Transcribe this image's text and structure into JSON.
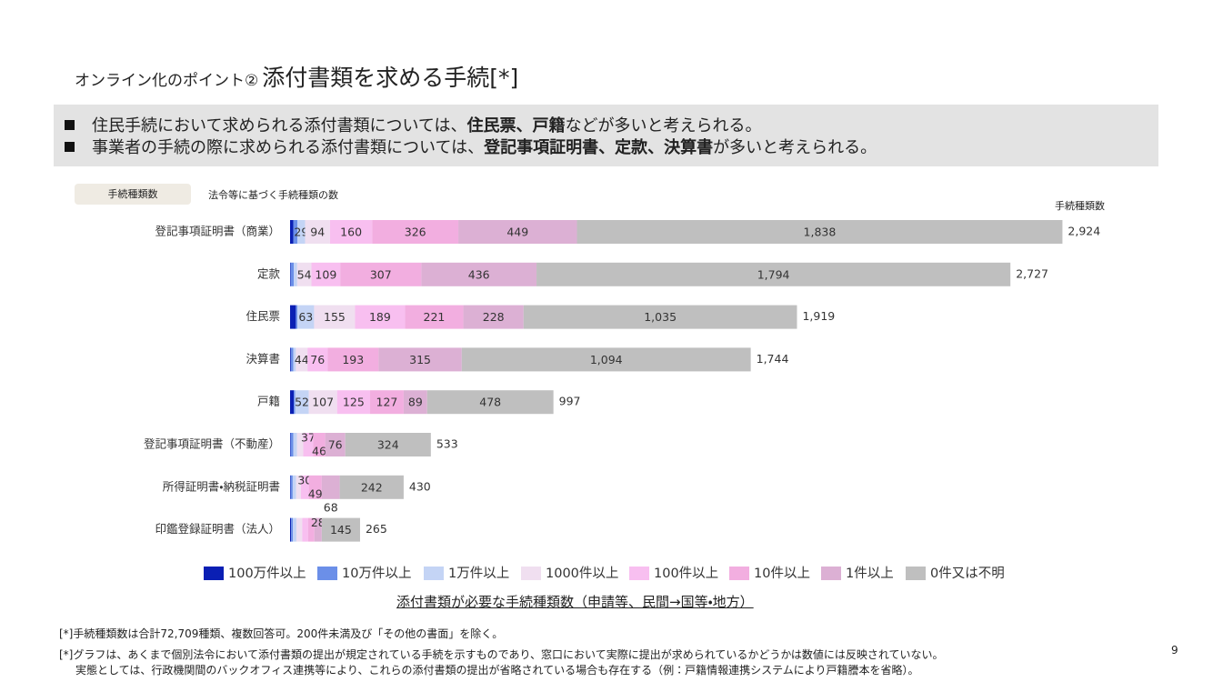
{
  "title": {
    "prefix": "オンライン化のポイント②",
    "main": "添付書類を求める手続[*]"
  },
  "bullets": [
    [
      "住民手続において求められる添付書類については、",
      "住民票、戸籍",
      "などが多いと考えられる。"
    ],
    [
      "事業者の手続の際に求められる添付書類については、",
      "登記事項証明書、定款、決算書",
      "が多いと考えられる。"
    ]
  ],
  "chart_data": {
    "type": "stacked-barh",
    "tag": "手続種類数",
    "tag_note": "法令等に基づく手続種類の数",
    "total_header": "手続種類数",
    "x_label": "添付書類が必要な手続種類数（申請等、民間→国等・地方）",
    "categories": [
      "登記事項証明書（商業）",
      "定款",
      "住民票",
      "決算書",
      "戸籍",
      "登記事項証明書（不動産）",
      "所得証明書・納税証明書",
      "印鑑登録証明書（法人）"
    ],
    "series": [
      {
        "name": "100万件以上",
        "color": "#0a1fb4",
        "values": [
          12,
          2,
          22,
          3,
          14,
          2,
          2,
          4
        ],
        "value_labels": [
          null,
          null,
          null,
          null,
          null,
          null,
          null,
          null
        ]
      },
      {
        "name": "10万件以上",
        "color": "#6b8fe8",
        "values": [
          16,
          12,
          6,
          9,
          5,
          10,
          8,
          7
        ],
        "value_labels": [
          null,
          null,
          null,
          null,
          null,
          null,
          null,
          null
        ]
      },
      {
        "name": "1万件以上",
        "color": "#c4d4f5",
        "values": [
          29,
          13,
          63,
          10,
          52,
          14,
          13,
          13
        ],
        "value_labels": [
          "29",
          null,
          "63",
          null,
          "52",
          null,
          null,
          null
        ]
      },
      {
        "name": "1000件以上",
        "color": "#f0dff0",
        "values": [
          94,
          54,
          155,
          44,
          107,
          24,
          18,
          22
        ],
        "value_labels": [
          "94",
          "54",
          "155",
          "44",
          "107",
          null,
          null,
          null
        ]
      },
      {
        "name": "100件以上",
        "color": "#f8bff0",
        "values": [
          160,
          109,
          189,
          76,
          125,
          37,
          30,
          22
        ],
        "value_labels": [
          "160",
          "109",
          "189",
          "76",
          "125",
          "37",
          "30",
          null
        ]
      },
      {
        "name": "10件以上",
        "color": "#f2aee0",
        "values": [
          326,
          307,
          221,
          193,
          127,
          46,
          49,
          24
        ],
        "value_labels": [
          "326",
          "307",
          "221",
          "193",
          "127",
          "46",
          "49",
          null
        ]
      },
      {
        "name": "1件以上",
        "color": "#dcb0d4",
        "values": [
          449,
          436,
          228,
          315,
          89,
          76,
          68,
          28
        ],
        "value_labels": [
          "449",
          "436",
          "228",
          "315",
          "89",
          "76",
          "68",
          "28"
        ]
      },
      {
        "name": "0件又は不明",
        "color": "#bfbfbf",
        "values": [
          1838,
          1794,
          1035,
          1094,
          478,
          324,
          242,
          145
        ],
        "value_labels": [
          "1,838",
          "1,794",
          "1,035",
          "1,094",
          "478",
          "324",
          "242",
          "145"
        ]
      }
    ],
    "totals": [
      {
        "value": 2924,
        "label": "2,924"
      },
      {
        "value": 2727,
        "label": "2,727"
      },
      {
        "value": 1919,
        "label": "1,919"
      },
      {
        "value": 1744,
        "label": "1,744"
      },
      {
        "value": 997,
        "label": "997"
      },
      {
        "value": 533,
        "label": "533"
      },
      {
        "value": 430,
        "label": "430"
      },
      {
        "value": 265,
        "label": "265"
      }
    ]
  },
  "footnotes": [
    "[*]手続種類数は合計72,709種類、複数回答可。200件未満及び「その他の書面」を除く。",
    "[*]グラフは、あくまで個別法令において添付書類の提出が規定されている手続を示すものであり、窓口において実際に提出が求められているかどうかは数値には反映されていない。",
    "実態としては、行政機関間のバックオフィス連携等により、これらの添付書類の提出が省略されている場合も存在する（例：戸籍情報連携システムにより戸籍謄本を省略）。"
  ],
  "page_number": "9"
}
